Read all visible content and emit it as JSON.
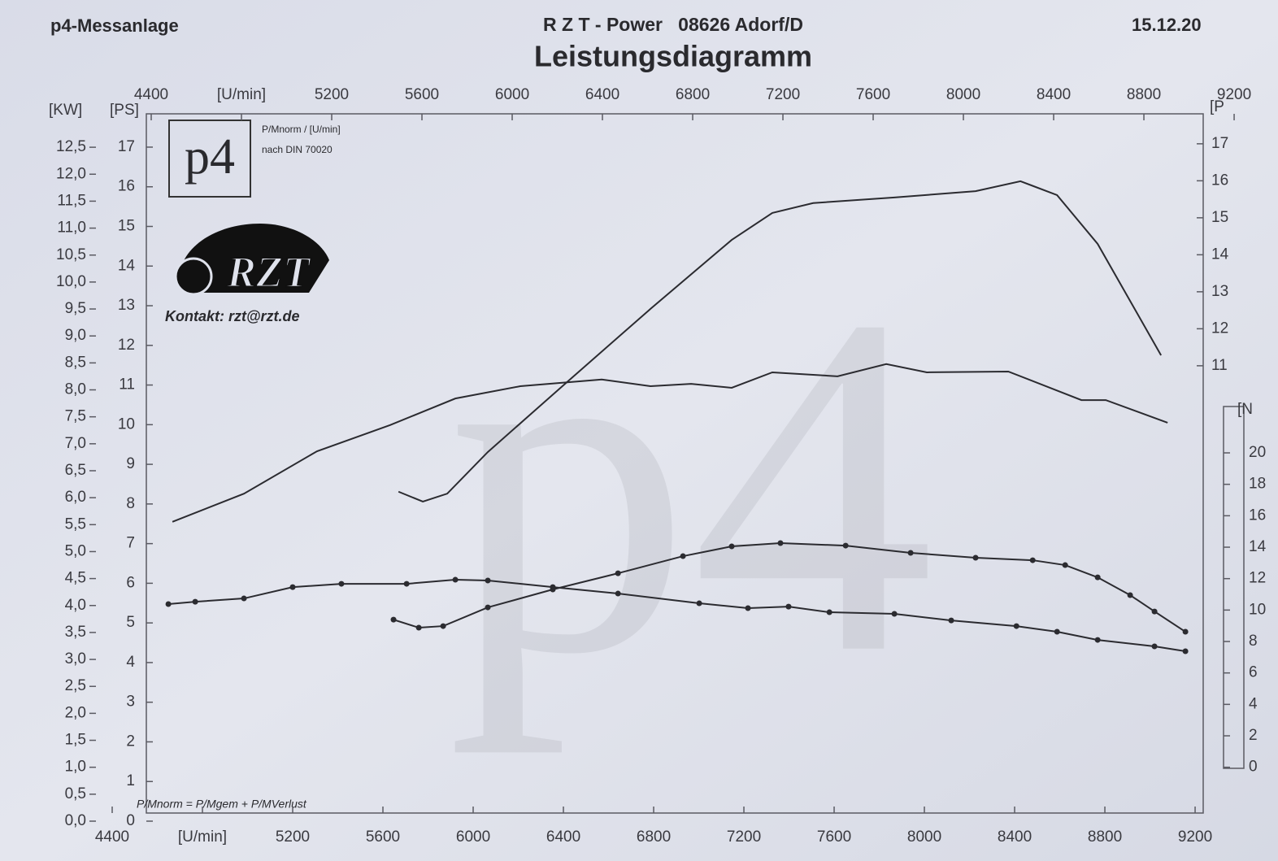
{
  "chart_data": {
    "type": "line",
    "title": "Leistungsdiagramm",
    "header_left": "p4-Messanlage",
    "header_center": "R Z T - Power   08626 Adorf/D",
    "header_date": "15.12.20",
    "logo_text": "p4",
    "watermark": "p4",
    "brand_logo": "RZT",
    "contact": "Kontakt: rzt@rzt.de",
    "norm_note": "P/Mnorm / [U/min]",
    "din_note": "nach DIN 70020",
    "formula": "P/Mnorm = P/Mgem + P/MVerlust",
    "xlim": [
      4400,
      9380
    ],
    "xticks": [
      4400,
      {
        "value": 4800,
        "label": "[U/min]"
      },
      5200,
      5600,
      6000,
      6400,
      6800,
      7200,
      7600,
      8000,
      8400,
      8800,
      9200
    ],
    "top_xticks": [
      4400,
      {
        "value": 4800,
        "label": "[U/min]"
      },
      5200,
      5600,
      6000,
      6400,
      6800,
      7200,
      7600,
      8000,
      8400,
      8800,
      9200
    ],
    "ylabel": "[PS]",
    "ylim": [
      0,
      17.84
    ],
    "yticks": [
      0,
      1,
      2,
      3,
      4,
      5,
      6,
      7,
      8,
      9,
      10,
      11,
      12,
      13,
      14,
      15,
      16,
      17
    ],
    "kw_axis": {
      "label": "[KW]",
      "lim": [
        0,
        13.12
      ],
      "ticks": [
        {
          "value": 0,
          "label": "0,0"
        },
        {
          "value": 0.5,
          "label": "0,5"
        },
        {
          "value": 1,
          "label": "1,0"
        },
        {
          "value": 1.5,
          "label": "1,5"
        },
        {
          "value": 2,
          "label": "2,0"
        },
        {
          "value": 2.5,
          "label": "2,5"
        },
        {
          "value": 3,
          "label": "3,0"
        },
        {
          "value": 3.5,
          "label": "3,5"
        },
        {
          "value": 4,
          "label": "4,0"
        },
        {
          "value": 4.5,
          "label": "4,5"
        },
        {
          "value": 5,
          "label": "5,0"
        },
        {
          "value": 5.5,
          "label": "5,5"
        },
        {
          "value": 6,
          "label": "6,0"
        },
        {
          "value": 6.5,
          "label": "6,5"
        },
        {
          "value": 7,
          "label": "7,0"
        },
        {
          "value": 7.5,
          "label": "7,5"
        },
        {
          "value": 8,
          "label": "8,0"
        },
        {
          "value": 8.5,
          "label": "8,5"
        },
        {
          "value": 9,
          "label": "9,0"
        },
        {
          "value": 9.5,
          "label": "9,5"
        },
        {
          "value": 10,
          "label": "10,0"
        },
        {
          "value": 10.5,
          "label": "10,5"
        },
        {
          "value": 11,
          "label": "11,0"
        },
        {
          "value": 11.5,
          "label": "11,5"
        },
        {
          "value": 12,
          "label": "12,0"
        },
        {
          "value": 12.5,
          "label": "12,5"
        }
      ]
    },
    "p_axis": {
      "label": "[P",
      "lim": [
        -1.31,
        17.81
      ],
      "ticks": [
        11,
        12,
        13,
        14,
        15,
        16,
        17
      ]
    },
    "y2label": "[N",
    "y2lim": [
      -3.43,
      41.57
    ],
    "y2ticks": [
      0,
      2,
      4,
      6,
      8,
      10,
      12,
      14,
      16,
      18,
      20
    ],
    "series": [
      {
        "color": "#2b2b30",
        "markers": false,
        "x": [
          4667,
          4984,
          5308,
          5632,
          5921,
          6209,
          6570,
          6786,
          6966,
          7146,
          7326,
          7615,
          7831,
          8011,
          8372,
          8696,
          8804,
          9078
        ],
        "values": [
          7.55,
          8.26,
          9.33,
          9.99,
          10.66,
          10.97,
          11.14,
          10.97,
          11.03,
          10.93,
          11.32,
          11.22,
          11.53,
          11.32,
          11.34,
          10.62,
          10.62,
          10.05
        ]
      },
      {
        "color": "#2b2b30",
        "markers": false,
        "x": [
          5669,
          5777,
          5885,
          6065,
          6425,
          6786,
          7146,
          7326,
          7507,
          7867,
          8227,
          8426,
          8588,
          8768,
          9049
        ],
        "values": [
          8.31,
          8.06,
          8.26,
          9.31,
          11.12,
          12.92,
          14.66,
          15.34,
          15.59,
          15.73,
          15.89,
          16.14,
          15.79,
          14.56,
          11.75
        ]
      },
      {
        "color": "#2b2b30",
        "markers": true,
        "axis": "y2",
        "x": [
          4649,
          4768,
          4984,
          5200,
          5416,
          5705,
          5921,
          6065,
          6353,
          6642,
          7002,
          7218,
          7398,
          7579,
          7867,
          8119,
          8408,
          8588,
          8768,
          9020,
          9157
        ],
        "values": [
          10.38,
          10.53,
          10.74,
          11.46,
          11.67,
          11.67,
          11.93,
          11.88,
          11.46,
          11.05,
          10.43,
          10.12,
          10.22,
          9.86,
          9.76,
          9.34,
          8.98,
          8.62,
          8.1,
          7.69,
          7.38
        ]
      },
      {
        "color": "#2b2b30",
        "markers": true,
        "axis": "y2",
        "x": [
          5647,
          5759,
          5867,
          6065,
          6353,
          6642,
          6930,
          7146,
          7362,
          7651,
          7939,
          8227,
          8480,
          8624,
          8768,
          8912,
          9020,
          9157
        ],
        "values": [
          9.39,
          8.88,
          8.98,
          10.17,
          11.31,
          12.34,
          13.43,
          14.05,
          14.26,
          14.1,
          13.64,
          13.33,
          13.17,
          12.86,
          12.08,
          10.95,
          9.91,
          8.62
        ]
      }
    ]
  }
}
